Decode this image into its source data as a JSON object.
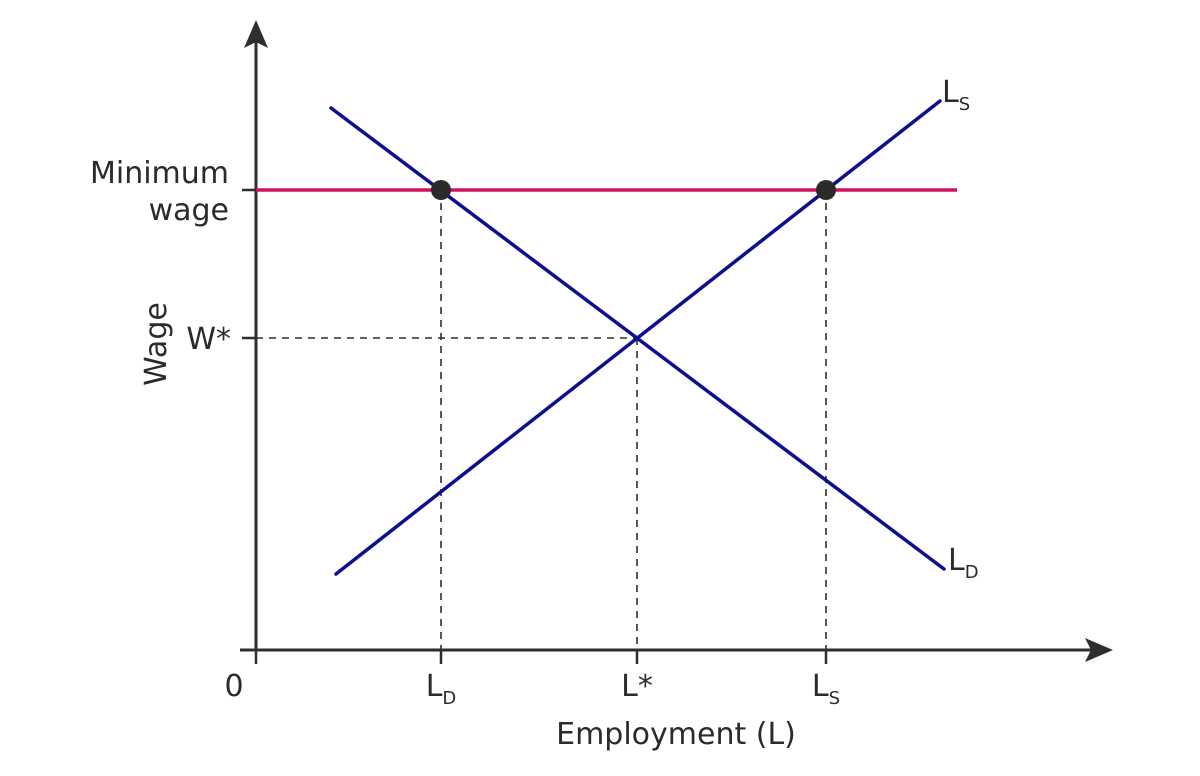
{
  "axes": {
    "y_title": "Wage",
    "x_title": "Employment (L)",
    "origin": "0"
  },
  "labels": {
    "min_wage_line1": "Minimum",
    "min_wage_line2": "wage",
    "w_star": "W*",
    "x_ld_main": "L",
    "x_ld_sub": "D",
    "x_lstar": "L*",
    "x_ls_main": "L",
    "x_ls_sub": "S",
    "curve_ls_main": "L",
    "curve_ls_sub": "S",
    "curve_ld_main": "L",
    "curve_ld_sub": "D"
  },
  "colors": {
    "curves": "#0d0f8f",
    "minimum_wage": "#d0105f",
    "axes": "#2e2e2e"
  }
}
